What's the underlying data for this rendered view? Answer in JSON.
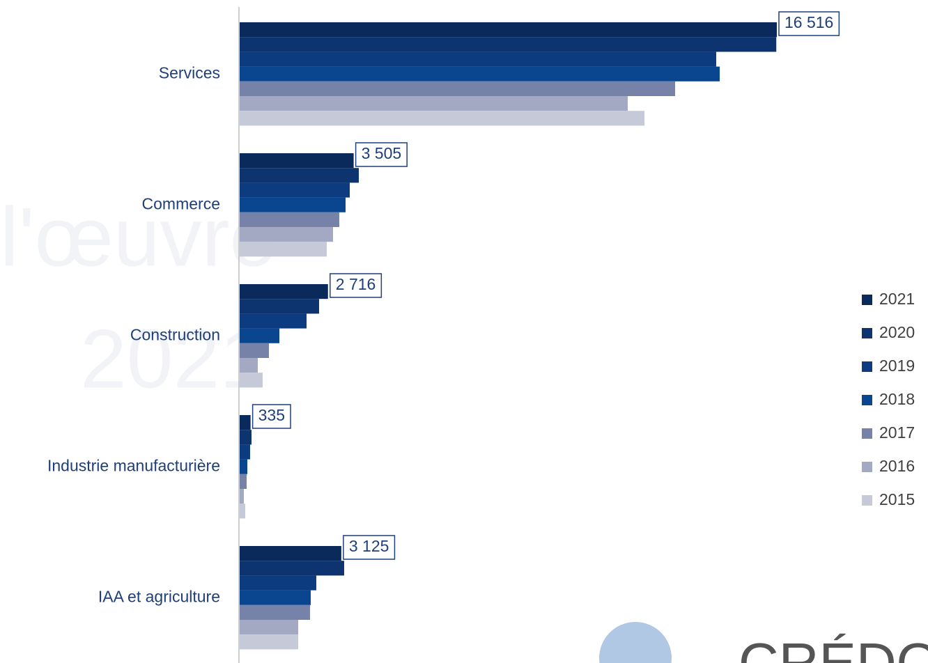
{
  "chart_data": {
    "type": "hbar",
    "categories": [
      "Services",
      "Commerce",
      "Construction",
      "Industrie manufacturière",
      "IAA et agriculture"
    ],
    "series": [
      {
        "name": "2021",
        "color": "#0b2a5c",
        "values": [
          16516,
          3505,
          2716,
          335,
          3125
        ],
        "value_labels": [
          "16 516",
          "3 505",
          "2 716",
          "335",
          "3 125"
        ]
      },
      {
        "name": "2020",
        "color": "#0e3470",
        "values": [
          16500,
          3663,
          2442,
          364,
          3213
        ]
      },
      {
        "name": "2019",
        "color": "#0d3b80",
        "values": [
          14653,
          3385,
          2057,
          321,
          2356
        ]
      },
      {
        "name": "2018",
        "color": "#0a4690",
        "values": [
          14760,
          3256,
          1221,
          236,
          2185
        ]
      },
      {
        "name": "2017",
        "color": "#7682a8",
        "values": [
          13389,
          3063,
          900,
          214,
          2164
        ]
      },
      {
        "name": "2016",
        "color": "#a3a9c2",
        "values": [
          11932,
          2871,
          557,
          129,
          1800
        ]
      },
      {
        "name": "2015",
        "color": "#c5c9d8",
        "values": [
          12446,
          2678,
          707,
          171,
          1800
        ]
      }
    ],
    "legend": "right",
    "watermark": [
      "l'œuvre",
      "2021"
    ],
    "logo": "CRÉDOC"
  }
}
